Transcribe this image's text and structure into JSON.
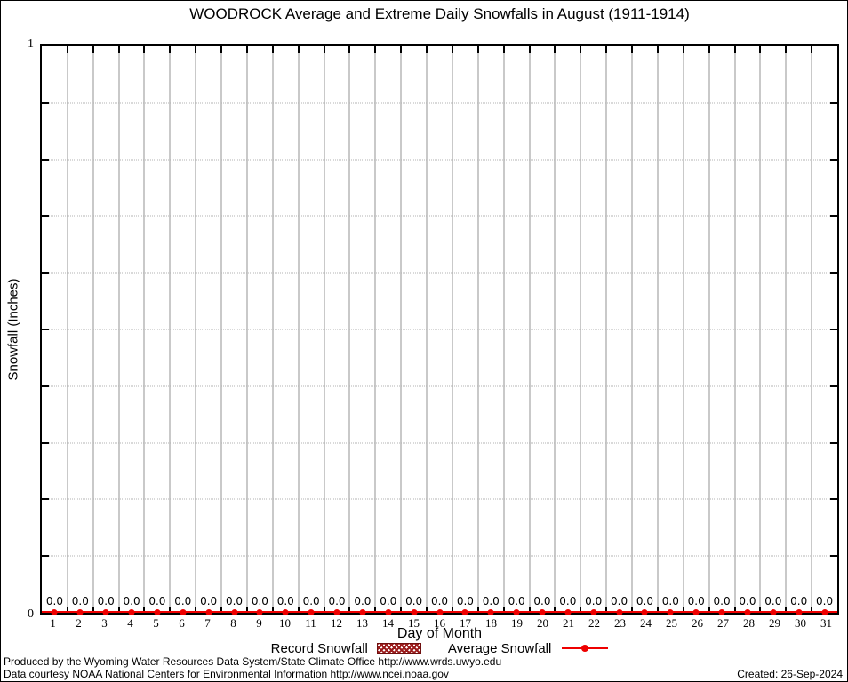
{
  "title": "WOODROCK Average and Extreme Daily Snowfalls in August (1911-1914)",
  "y_axis": {
    "label": "Snowfall (Inches)",
    "max_tick_label": "1",
    "min_tick_label": "0"
  },
  "x_axis": {
    "label": "Day of Month"
  },
  "legend": {
    "record": {
      "label": "Record Snowfall",
      "swatch": "hatched-box-icon",
      "color": "#9b1c1c"
    },
    "average": {
      "label": "Average Snowfall",
      "swatch": "line-with-point-icon",
      "color": "#ee0000"
    }
  },
  "footer": {
    "line1": "Produced by the Wyoming Water Resources Data System/State Climate Office http://www.wrds.uwyo.edu",
    "line2": "Data courtesy NOAA National Centers for Environmental Information http://www.ncei.noaa.gov",
    "created": "Created: 26-Sep-2024"
  },
  "colors": {
    "series_red": "#ee0000",
    "record_dark_red": "#9b1c1c",
    "vertical_gridline": "#c9c9c9",
    "dotted_gridline": "#b3b3b3",
    "axis": "#000000"
  },
  "chart_data": {
    "type": "line",
    "title": "WOODROCK Average and Extreme Daily Snowfalls in August (1911-1914)",
    "xlabel": "Day of Month",
    "ylabel": "Snowfall (Inches)",
    "ylim": [
      0,
      1
    ],
    "y_major_tick_labels": [
      "0",
      "1"
    ],
    "y_minor_tick_interval": 0.1,
    "grid": {
      "vertical": "solid line at each day boundary",
      "horizontal": "dotted line every 0.1"
    },
    "legend_position": "bottom-center",
    "categories": [
      1,
      2,
      3,
      4,
      5,
      6,
      7,
      8,
      9,
      10,
      11,
      12,
      13,
      14,
      15,
      16,
      17,
      18,
      19,
      20,
      21,
      22,
      23,
      24,
      25,
      26,
      27,
      28,
      29,
      30,
      31
    ],
    "series": [
      {
        "name": "Record Snowfall",
        "style": "hatched-box",
        "values": [
          0.0,
          0.0,
          0.0,
          0.0,
          0.0,
          0.0,
          0.0,
          0.0,
          0.0,
          0.0,
          0.0,
          0.0,
          0.0,
          0.0,
          0.0,
          0.0,
          0.0,
          0.0,
          0.0,
          0.0,
          0.0,
          0.0,
          0.0,
          0.0,
          0.0,
          0.0,
          0.0,
          0.0,
          0.0,
          0.0,
          0.0
        ]
      },
      {
        "name": "Average Snowfall",
        "style": "red-line-with-points",
        "values": [
          0.0,
          0.0,
          0.0,
          0.0,
          0.0,
          0.0,
          0.0,
          0.0,
          0.0,
          0.0,
          0.0,
          0.0,
          0.0,
          0.0,
          0.0,
          0.0,
          0.0,
          0.0,
          0.0,
          0.0,
          0.0,
          0.0,
          0.0,
          0.0,
          0.0,
          0.0,
          0.0,
          0.0,
          0.0,
          0.0,
          0.0
        ]
      }
    ],
    "point_labels": [
      "0.0",
      "0.0",
      "0.0",
      "0.0",
      "0.0",
      "0.0",
      "0.0",
      "0.0",
      "0.0",
      "0.0",
      "0.0",
      "0.0",
      "0.0",
      "0.0",
      "0.0",
      "0.0",
      "0.0",
      "0.0",
      "0.0",
      "0.0",
      "0.0",
      "0.0",
      "0.0",
      "0.0",
      "0.0",
      "0.0",
      "0.0",
      "0.0",
      "0.0",
      "0.0",
      "0.0"
    ]
  }
}
